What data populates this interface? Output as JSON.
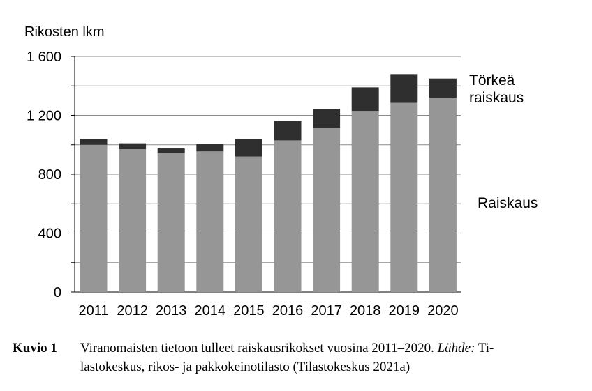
{
  "chart_data": {
    "type": "bar",
    "stacked": true,
    "ylabel": "Rikosten lkm",
    "ylim": [
      0,
      1600
    ],
    "yticks": [
      0,
      400,
      800,
      1200,
      1600
    ],
    "ytick_labels": [
      "0",
      "400",
      "800",
      "1 200",
      "1 600"
    ],
    "grid": true,
    "legend_placement": "right",
    "categories": [
      "2011",
      "2012",
      "2013",
      "2014",
      "2015",
      "2016",
      "2017",
      "2018",
      "2019",
      "2020"
    ],
    "series": [
      {
        "name": "Raiskaus",
        "color": "#969696",
        "values": [
          1000,
          970,
          945,
          955,
          920,
          1030,
          1115,
          1230,
          1285,
          1320
        ]
      },
      {
        "name": "Törkeä raiskaus",
        "color": "#2f2f2f",
        "values": [
          40,
          40,
          30,
          50,
          120,
          130,
          130,
          160,
          195,
          130
        ]
      }
    ],
    "legend_labels": [
      {
        "series": 1,
        "lines": [
          "Törkeä",
          "raiskaus"
        ]
      },
      {
        "series": 0,
        "lines": [
          "Raiskaus"
        ]
      }
    ]
  },
  "caption": {
    "label": "Kuvio 1",
    "text1": "Viranomaisten tietoon tulleet raiskausrikokset vuosina 2011–2020. ",
    "source_label": "Lähde:",
    "text2": " Ti-",
    "line2": "lastokeskus, rikos- ja pakkokeinotilasto (Tilastokeskus 2021a)"
  }
}
